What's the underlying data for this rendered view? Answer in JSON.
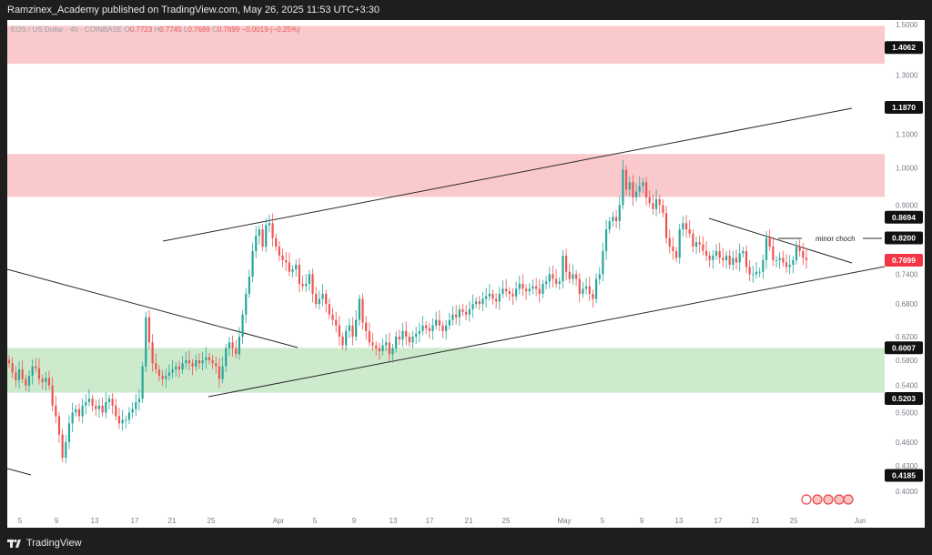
{
  "header": {
    "publisher_line": "Ramzinex_Academy published on TradingView.com, May 26, 2025 11:53 UTC+3:30"
  },
  "legend": {
    "symbol": "EOS / US Dollar · 4h · COINBASE",
    "o_label": "O",
    "o_value": "0.7723",
    "h_label": "H",
    "h_value": "0.7745",
    "l_label": "L",
    "l_value": "0.7689",
    "c_label": "C",
    "c_value": "0.7699",
    "change": "−0.0019 (−0.25%)"
  },
  "footer": {
    "brand": "TradingView"
  },
  "colors": {
    "up": "#26a69a",
    "down": "#ef5350",
    "supply_zone": "#f9c9cc",
    "demand_zone": "#cdeacd",
    "line": "#2a2a2a",
    "axis_text": "#787b86",
    "last_price_badge": "#f23645"
  },
  "chart_data": {
    "type": "candlestick",
    "symbol": "EOS / US Dollar",
    "timeframe": "4h",
    "exchange": "COINBASE",
    "y_axis": {
      "scale": "log",
      "ylim": [
        0.38,
        1.52
      ],
      "ticks": [
        "1.5000",
        "1.3000",
        "1.1000",
        "1.0000",
        "0.9000",
        "0.7400",
        "0.6800",
        "0.6200",
        "0.5800",
        "0.5400",
        "0.5000",
        "0.4600",
        "0.4300",
        "0.4000"
      ]
    },
    "x_axis": {
      "ticks": [
        "5",
        "9",
        "13",
        "17",
        "21",
        "25",
        "Apr",
        "5",
        "9",
        "13",
        "17",
        "21",
        "25",
        "May",
        "5",
        "9",
        "13",
        "17",
        "21",
        "25",
        "Jun"
      ]
    },
    "price_labels": [
      {
        "value": "1.4062",
        "style": "dark"
      },
      {
        "value": "1.1870",
        "style": "dark"
      },
      {
        "value": "0.8694",
        "style": "dark"
      },
      {
        "value": "0.8200",
        "style": "dark"
      },
      {
        "value": "0.7699",
        "style": "last"
      },
      {
        "value": "0.6007",
        "style": "dark"
      },
      {
        "value": "0.5203",
        "style": "dark"
      },
      {
        "value": "0.4185",
        "style": "dark"
      }
    ],
    "zones": [
      {
        "type": "supply",
        "from": 1.343,
        "to": 1.495
      },
      {
        "type": "supply",
        "from": 0.921,
        "to": 1.04
      },
      {
        "type": "demand",
        "from": 0.529,
        "to": 0.6007
      }
    ],
    "annotations": [
      {
        "text": "minor choch",
        "price": 0.82
      }
    ],
    "candles_close": [
      0.575,
      0.56,
      0.548,
      0.565,
      0.55,
      0.54,
      0.555,
      0.57,
      0.567,
      0.55,
      0.545,
      0.552,
      0.54,
      0.51,
      0.495,
      0.47,
      0.44,
      0.46,
      0.485,
      0.5,
      0.505,
      0.495,
      0.51,
      0.515,
      0.52,
      0.51,
      0.505,
      0.51,
      0.5,
      0.515,
      0.52,
      0.51,
      0.495,
      0.485,
      0.49,
      0.49,
      0.5,
      0.505,
      0.515,
      0.52,
      0.57,
      0.655,
      0.61,
      0.575,
      0.565,
      0.555,
      0.55,
      0.555,
      0.56,
      0.565,
      0.57,
      0.565,
      0.575,
      0.58,
      0.575,
      0.57,
      0.58,
      0.575,
      0.58,
      0.585,
      0.58,
      0.575,
      0.57,
      0.55,
      0.57,
      0.6,
      0.61,
      0.6,
      0.59,
      0.62,
      0.66,
      0.7,
      0.735,
      0.79,
      0.825,
      0.84,
      0.8,
      0.85,
      0.855,
      0.82,
      0.8,
      0.78,
      0.77,
      0.765,
      0.745,
      0.75,
      0.76,
      0.72,
      0.715,
      0.72,
      0.74,
      0.7,
      0.68,
      0.69,
      0.7,
      0.68,
      0.66,
      0.65,
      0.64,
      0.62,
      0.605,
      0.63,
      0.64,
      0.62,
      0.65,
      0.69,
      0.645,
      0.63,
      0.61,
      0.605,
      0.6,
      0.595,
      0.605,
      0.61,
      0.59,
      0.6,
      0.62,
      0.615,
      0.63,
      0.62,
      0.61,
      0.62,
      0.625,
      0.63,
      0.64,
      0.635,
      0.63,
      0.64,
      0.65,
      0.64,
      0.63,
      0.64,
      0.65,
      0.66,
      0.655,
      0.67,
      0.665,
      0.66,
      0.67,
      0.68,
      0.685,
      0.68,
      0.69,
      0.695,
      0.7,
      0.69,
      0.685,
      0.7,
      0.71,
      0.705,
      0.7,
      0.695,
      0.71,
      0.72,
      0.71,
      0.705,
      0.71,
      0.715,
      0.71,
      0.7,
      0.72,
      0.725,
      0.74,
      0.73,
      0.72,
      0.725,
      0.78,
      0.745,
      0.73,
      0.74,
      0.73,
      0.7,
      0.71,
      0.715,
      0.7,
      0.69,
      0.73,
      0.74,
      0.79,
      0.84,
      0.86,
      0.87,
      0.86,
      0.9,
      0.995,
      0.94,
      0.96,
      0.92,
      0.935,
      0.95,
      0.96,
      0.92,
      0.905,
      0.89,
      0.915,
      0.9,
      0.88,
      0.82,
      0.8,
      0.79,
      0.775,
      0.84,
      0.855,
      0.84,
      0.83,
      0.8,
      0.81,
      0.805,
      0.79,
      0.78,
      0.77,
      0.78,
      0.79,
      0.775,
      0.77,
      0.78,
      0.76,
      0.775,
      0.765,
      0.785,
      0.79,
      0.755,
      0.74,
      0.74,
      0.745,
      0.745,
      0.77,
      0.82,
      0.8,
      0.77,
      0.77,
      0.775,
      0.765,
      0.755,
      0.76,
      0.77,
      0.8,
      0.79,
      0.775,
      0.77
    ]
  }
}
